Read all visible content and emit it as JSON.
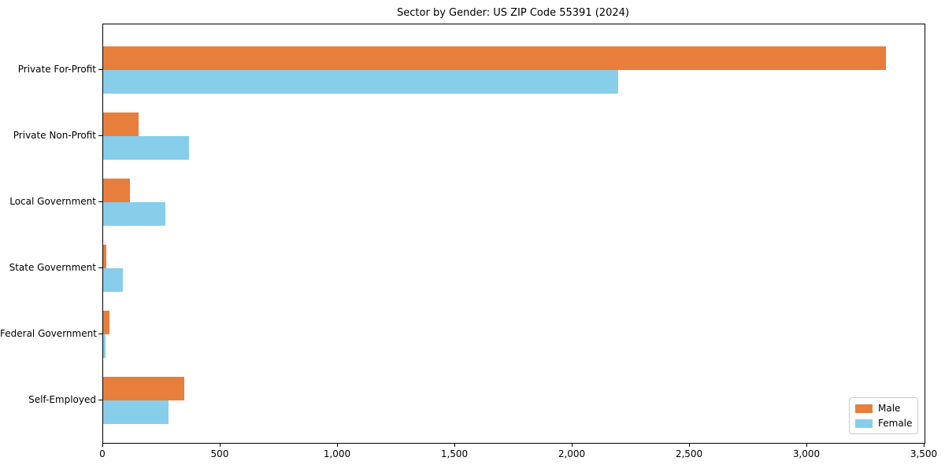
{
  "chart_data": {
    "type": "bar",
    "orientation": "horizontal",
    "title": "Sector by Gender: US ZIP Code 55391 (2024)",
    "categories": [
      "Private For-Profit",
      "Private Non-Profit",
      "Local Government",
      "State Government",
      "Federal Government",
      "Self-Employed"
    ],
    "series": [
      {
        "name": "Male",
        "color": "#E87E3C",
        "values": [
          3335,
          150,
          115,
          12,
          25,
          345
        ]
      },
      {
        "name": "Female",
        "color": "#87CEEB",
        "values": [
          2195,
          365,
          265,
          85,
          10,
          280
        ]
      }
    ],
    "xlabel": "",
    "ylabel": "",
    "xlim": [
      0,
      3500
    ],
    "x_ticks": [
      0,
      500,
      1000,
      1500,
      2000,
      2500,
      3000,
      3500
    ],
    "x_tick_labels": [
      "0",
      "500",
      "1,000",
      "1,500",
      "2,000",
      "2,500",
      "3,000",
      "3,500"
    ],
    "grid": false,
    "legend_position": "lower right",
    "axis_color": "#000000",
    "background_color": "#ffffff"
  }
}
